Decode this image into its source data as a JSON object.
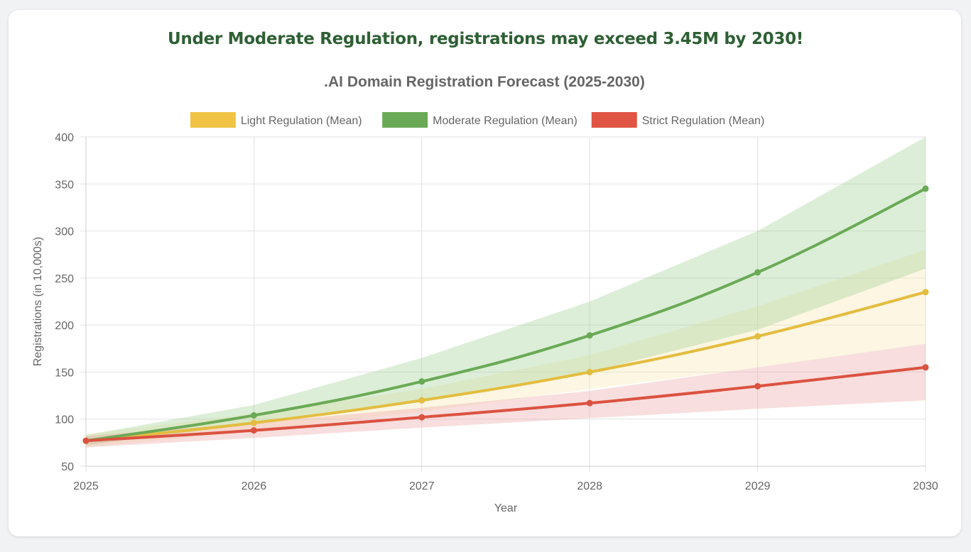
{
  "headline": "Under Moderate Regulation, registrations may exceed 3.45M by 2030!",
  "chart_data": {
    "type": "line",
    "title": ".AI Domain Registration Forecast (2025-2030)",
    "xlabel": "Year",
    "ylabel": "Registrations (in 10,000s)",
    "categories": [
      "2025",
      "2026",
      "2027",
      "2028",
      "2029",
      "2030"
    ],
    "ylim": [
      50,
      400
    ],
    "yticks": [
      50,
      100,
      150,
      200,
      250,
      300,
      350,
      400
    ],
    "grid": true,
    "legend_position": "top-center",
    "series": [
      {
        "name": "Light Regulation (Mean)",
        "color": "#e3bd3f",
        "legend_color": "#f0c344",
        "band_color": "#f7e4b0",
        "values": [
          77,
          96,
          120,
          150,
          188,
          235
        ],
        "lower": [
          70,
          87,
          108,
          132,
          155,
          180
        ],
        "upper": [
          84,
          106,
          132,
          168,
          220,
          280
        ]
      },
      {
        "name": "Moderate Regulation (Mean)",
        "color": "#6aaa56",
        "legend_color": "#6aaa56",
        "band_color": "#9ccd8c",
        "values": [
          77,
          104,
          140,
          189,
          256,
          345
        ],
        "lower": [
          72,
          95,
          118,
          150,
          195,
          260
        ],
        "upper": [
          83,
          115,
          165,
          225,
          300,
          400
        ]
      },
      {
        "name": "Strict Regulation (Mean)",
        "color": "#db5240",
        "legend_color": "#e05443",
        "band_color": "#eca1a0",
        "values": [
          77,
          88,
          102,
          117,
          135,
          155
        ],
        "lower": [
          70,
          80,
          91,
          101,
          111,
          120
        ],
        "upper": [
          82,
          96,
          112,
          130,
          155,
          180
        ]
      }
    ]
  }
}
